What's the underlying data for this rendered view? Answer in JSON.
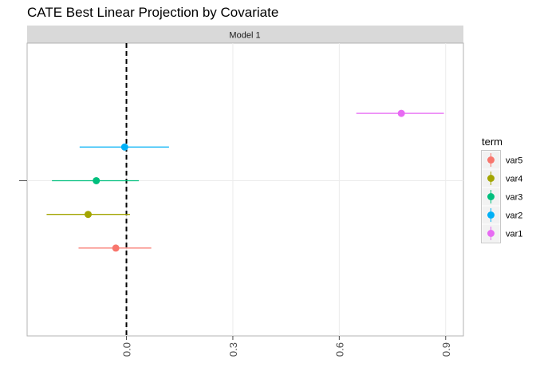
{
  "chart_data": {
    "type": "scatter",
    "title": "CATE Best Linear Projection by Covariate",
    "facet_label": "Model 1",
    "xlabel": "",
    "ylabel": "",
    "xlim": [
      -0.28,
      0.95
    ],
    "x_ticks": [
      0.0,
      0.3,
      0.6,
      0.9
    ],
    "x_tick_labels": [
      "0.0",
      "0.3",
      "0.6",
      "0.9"
    ],
    "reference_line": {
      "x": 0,
      "style": "dashed",
      "color": "#000000"
    },
    "grid": true,
    "legend": {
      "title": "term",
      "position": "right"
    },
    "series": [
      {
        "name": "var1",
        "color": "#E76BF3",
        "estimate": 0.775,
        "ci_low": 0.648,
        "ci_high": 0.895,
        "y": 0.76
      },
      {
        "name": "var2",
        "color": "#00B0F6",
        "estimate": -0.005,
        "ci_low": -0.132,
        "ci_high": 0.12,
        "y": 0.645
      },
      {
        "name": "var3",
        "color": "#00BF7D",
        "estimate": -0.085,
        "ci_low": -0.21,
        "ci_high": 0.035,
        "y": 0.53
      },
      {
        "name": "var4",
        "color": "#A3A500",
        "estimate": -0.108,
        "ci_low": -0.225,
        "ci_high": 0.01,
        "y": 0.415
      },
      {
        "name": "var5",
        "color": "#F8766D",
        "estimate": -0.03,
        "ci_low": -0.135,
        "ci_high": 0.07,
        "y": 0.3
      }
    ]
  }
}
